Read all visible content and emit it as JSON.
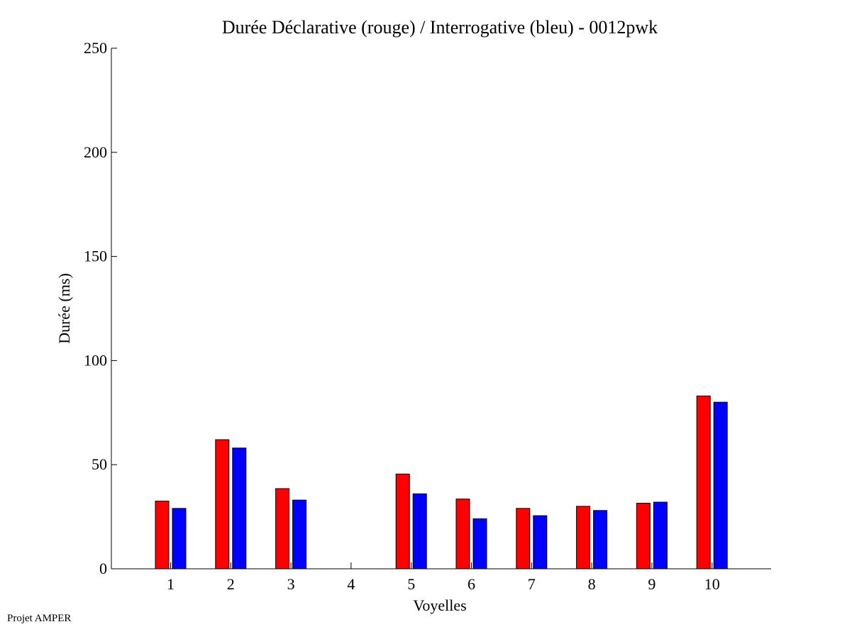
{
  "chart_data": {
    "type": "bar",
    "title": "Durée Déclarative (rouge) / Interrogative (bleu) - 0012pwk",
    "xlabel": "Voyelles",
    "ylabel": "Durée (ms)",
    "categories": [
      "1",
      "2",
      "3",
      "4",
      "5",
      "6",
      "7",
      "8",
      "9",
      "10"
    ],
    "ylim": [
      0,
      250
    ],
    "yticks": [
      "0",
      "50",
      "100",
      "150",
      "200",
      "250"
    ],
    "grid": false,
    "series": [
      {
        "color": "#ff0000",
        "values": [
          32.5,
          62,
          38.5,
          0,
          45.5,
          33.5,
          29,
          30,
          31.5,
          83
        ]
      },
      {
        "color": "#0000ff",
        "values": [
          29,
          58,
          33,
          0,
          36,
          24,
          25.5,
          28,
          32,
          80
        ]
      }
    ]
  },
  "footer": "Projet AMPER"
}
